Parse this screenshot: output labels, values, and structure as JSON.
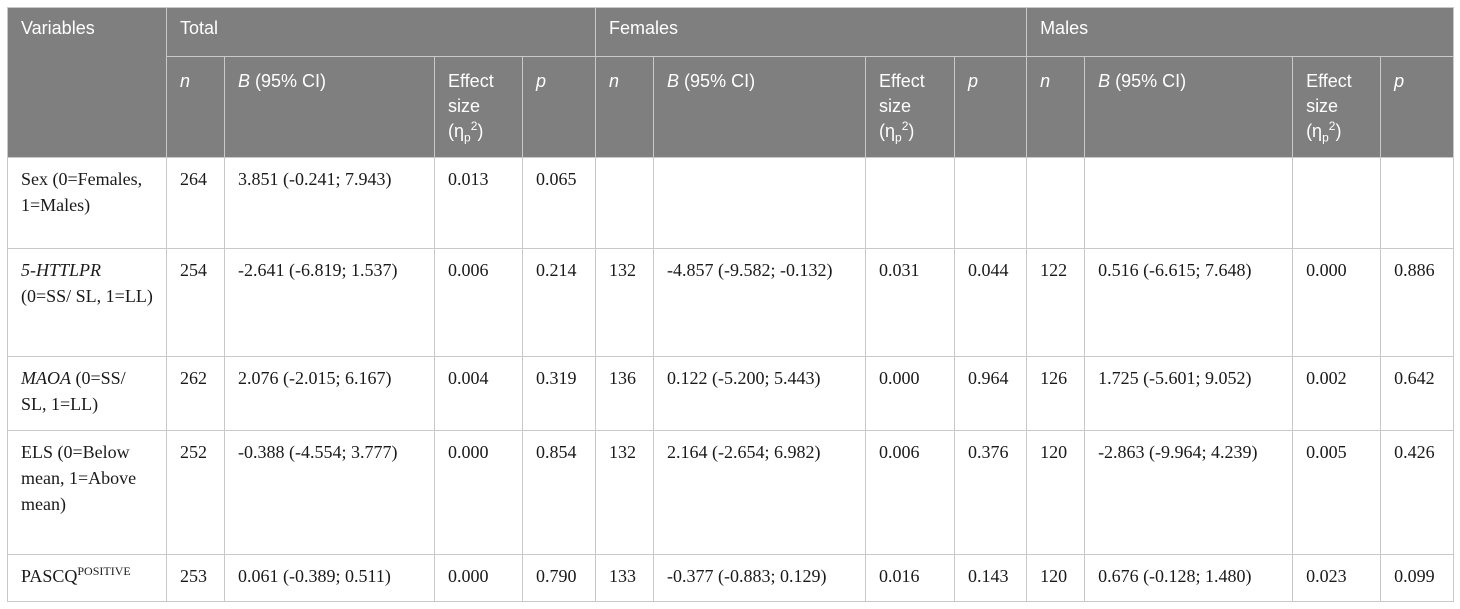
{
  "header": {
    "variables": "Variables",
    "groups": [
      "Total",
      "Females",
      "Males"
    ],
    "col_n": "n",
    "col_b_letter": "B",
    "col_b_rest": " (95% CI)",
    "col_effect": "Effect size",
    "col_eta": "(η",
    "col_eta_sub": "p",
    "col_eta_sup": "2",
    "col_eta_close": ")",
    "col_p": "p"
  },
  "rows": [
    {
      "variable": "Sex (0=Females, 1=Males)",
      "total": {
        "n": "264",
        "b": "3.851 (-0.241; 7.943)",
        "es": "0.013",
        "p": "0.065"
      },
      "females": {
        "n": "",
        "b": "",
        "es": "",
        "p": ""
      },
      "males": {
        "n": "",
        "b": "",
        "es": "",
        "p": ""
      }
    },
    {
      "variable_gene": "5-HTTLPR",
      "variable_rest": " (0=SS/ SL, 1=LL)",
      "total": {
        "n": "254",
        "b": "-2.641 (-6.819; 1.537)",
        "es": "0.006",
        "p": "0.214"
      },
      "females": {
        "n": "132",
        "b": "-4.857 (-9.582; -0.132)",
        "es": "0.031",
        "p": "0.044"
      },
      "males": {
        "n": "122",
        "b": "0.516 (-6.615; 7.648)",
        "es": "0.000",
        "p": "0.886"
      }
    },
    {
      "variable_gene": "MAOA",
      "variable_rest": " (0=SS/ SL, 1=LL)",
      "total": {
        "n": "262",
        "b": "2.076 (-2.015; 6.167)",
        "es": "0.004",
        "p": "0.319"
      },
      "females": {
        "n": "136",
        "b": "0.122 (-5.200; 5.443)",
        "es": "0.000",
        "p": "0.964"
      },
      "males": {
        "n": "126",
        "b": "1.725 (-5.601; 9.052)",
        "es": "0.002",
        "p": "0.642"
      }
    },
    {
      "variable": "ELS (0=Below mean, 1=Above mean)",
      "total": {
        "n": "252",
        "b": "-0.388 (-4.554; 3.777)",
        "es": "0.000",
        "p": "0.854"
      },
      "females": {
        "n": "132",
        "b": "2.164 (-2.654; 6.982)",
        "es": "0.006",
        "p": "0.376"
      },
      "males": {
        "n": "120",
        "b": "-2.863 (-9.964; 4.239)",
        "es": "0.005",
        "p": "0.426"
      }
    },
    {
      "variable_base": "PASCQ",
      "variable_sup": "POSITIVE",
      "total": {
        "n": "253",
        "b": "0.061 (-0.389; 0.511)",
        "es": "0.000",
        "p": "0.790"
      },
      "females": {
        "n": "133",
        "b": "-0.377 (-0.883; 0.129)",
        "es": "0.016",
        "p": "0.143"
      },
      "males": {
        "n": "120",
        "b": "0.676 (-0.128; 1.480)",
        "es": "0.023",
        "p": "0.099"
      }
    }
  ]
}
